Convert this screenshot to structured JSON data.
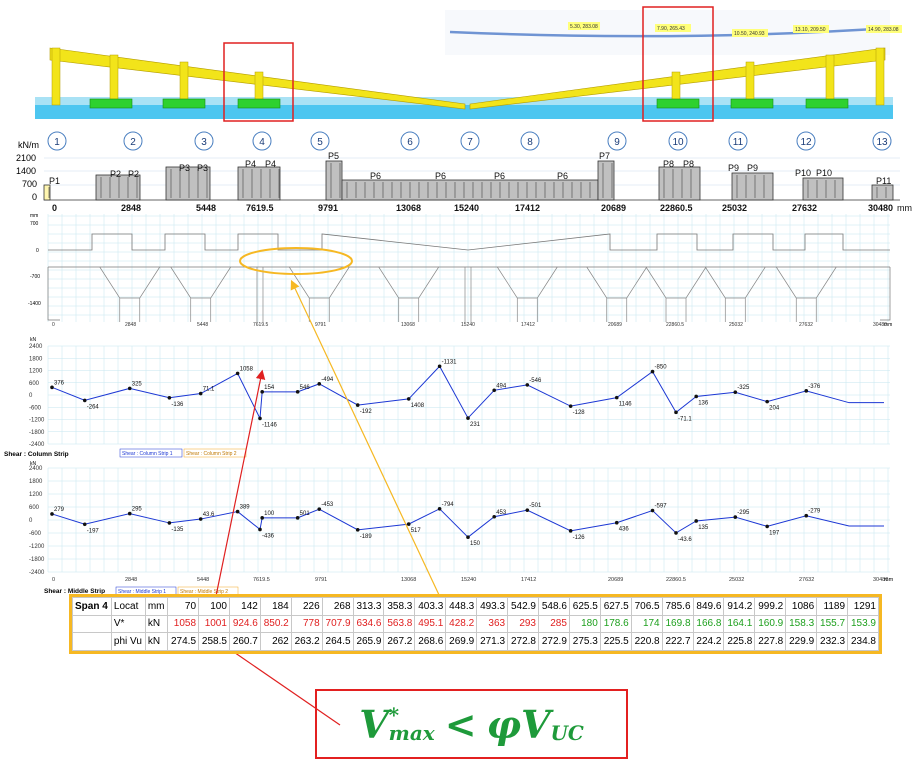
{
  "colors": {
    "slab": "#f2e41a",
    "beam": "#f2e41a",
    "column_top": "#2ed12e",
    "base": "#4dc6f0",
    "highlight": "#e02020",
    "callout": "#f6b823",
    "curve": "#1c37d4",
    "formula": "#1e9a3a"
  },
  "gridlines": [
    "1",
    "2",
    "3",
    "4",
    "5",
    "6",
    "7",
    "8",
    "9",
    "10",
    "11",
    "12",
    "13"
  ],
  "cable_labels": [
    "5.30, 283.08",
    "7.90, 265.43",
    "10.50, 240.93",
    "13.10, 209.50",
    "14.90, 283.08"
  ],
  "load_panel": {
    "unit": "kN/m",
    "y_ticks": [
      "2100",
      "1400",
      "700",
      "0"
    ],
    "x_labels": [
      "0",
      "2848",
      "5448",
      "7619.5",
      "9791",
      "13068",
      "15240",
      "17412",
      "20689",
      "22860.5",
      "25032",
      "27632",
      "30480"
    ],
    "x_unit": "mm",
    "patches": [
      "P1",
      "P2",
      "P2",
      "P3",
      "P3",
      "P4",
      "P4",
      "P5",
      "P6",
      "P6",
      "P6",
      "P6",
      "P7",
      "P8",
      "P8",
      "P9",
      "P9",
      "P10",
      "P10",
      "P11"
    ]
  },
  "section_panel": {
    "y_unit": "mm",
    "y_ticks": [
      "700",
      "0",
      "-700",
      "-1400"
    ],
    "x_labels": [
      "0",
      "2848",
      "5448",
      "7619.5",
      "9791",
      "13068",
      "15240",
      "17412",
      "20689",
      "22860.5",
      "25032",
      "27632",
      "30480"
    ],
    "x_unit": "mm"
  },
  "column_chart": {
    "unit": "kN",
    "y_ticks": [
      "2400",
      "1800",
      "1200",
      "600",
      "0",
      "-600",
      "-1200",
      "-1800",
      "-2400"
    ],
    "title": "Shear : Column Strip",
    "legend": [
      "Shear : Column Strip 1",
      "Shear : Column Strip 2"
    ],
    "labels": [
      "376",
      "-264",
      "325",
      "-136",
      "71.1",
      "1058",
      "-1146",
      "154",
      "546",
      "-494",
      "-192",
      "1408",
      "-1131",
      "231",
      "494",
      "-546",
      "-128",
      "1146",
      "-850",
      "-71.1",
      "136",
      "-325",
      "204",
      "-376"
    ]
  },
  "middle_chart": {
    "unit": "kN",
    "y_ticks": [
      "2400",
      "1800",
      "1200",
      "600",
      "0",
      "-600",
      "-1200",
      "-1800",
      "-2400"
    ],
    "title": "Shear : Middle Strip",
    "legend": [
      "Shear : Middle Strip 1",
      "Shear : Middle Strip 2"
    ],
    "labels": [
      "279",
      "-197",
      "295",
      "-135",
      "43.6",
      "389",
      "-436",
      "100",
      "501",
      "-453",
      "-189",
      "517",
      "-794",
      "150",
      "453",
      "-501",
      "-126",
      "436",
      "-597",
      "-43.6",
      "135",
      "-295",
      "197",
      "-279"
    ],
    "x_labels": [
      "0",
      "2848",
      "5448",
      "7619.5",
      "9791",
      "13068",
      "15240",
      "17412",
      "20689",
      "22860.5",
      "25032",
      "27632",
      "30480"
    ],
    "x_unit": "mm"
  },
  "chart_data": [
    {
      "type": "line",
      "title": "Shear : Column Strip",
      "ylabel": "kN",
      "ylim": [
        -2400,
        2400
      ],
      "x": [
        0,
        1200,
        2848,
        4300,
        5448,
        6800,
        7619.5,
        7700,
        9000,
        9791,
        11200,
        13068,
        14200,
        15240,
        16200,
        17412,
        19000,
        20689,
        22000,
        22860.5,
        23600,
        25032,
        26200,
        27632,
        29200,
        30480
      ],
      "values": [
        376,
        -264,
        325,
        -136,
        71.1,
        1058,
        -1146,
        154,
        154,
        546,
        -494,
        -192,
        1408,
        -1131,
        231,
        494,
        -546,
        -128,
        1146,
        -850,
        -71.1,
        136,
        -325,
        204,
        -376,
        -376
      ]
    },
    {
      "type": "line",
      "title": "Shear : Middle Strip",
      "ylabel": "kN",
      "ylim": [
        -2400,
        2400
      ],
      "x": [
        0,
        1200,
        2848,
        4300,
        5448,
        6800,
        7619.5,
        7700,
        9000,
        9791,
        11200,
        13068,
        14200,
        15240,
        16200,
        17412,
        19000,
        20689,
        22000,
        22860.5,
        23600,
        25032,
        26200,
        27632,
        29200,
        30480
      ],
      "values": [
        279,
        -197,
        295,
        -135,
        43.6,
        389,
        -436,
        100,
        100,
        501,
        -453,
        -189,
        517,
        -794,
        150,
        453,
        -501,
        -126,
        436,
        -597,
        -43.6,
        135,
        -295,
        197,
        -279,
        -279
      ]
    }
  ],
  "table": {
    "span_label": "Span 4",
    "rows": [
      {
        "name": "Locat",
        "unit": "mm",
        "cells": [
          "70",
          "100",
          "142",
          "184",
          "226",
          "268",
          "313.3",
          "358.3",
          "403.3",
          "448.3",
          "493.3",
          "542.9",
          "548.6",
          "625.5",
          "627.5",
          "706.5",
          "785.6",
          "849.6",
          "914.2",
          "999.2",
          "1086",
          "1189",
          "1291"
        ]
      },
      {
        "name": "V*",
        "unit": "kN",
        "cells": [
          "1058",
          "1001",
          "924.6",
          "850.2",
          "778",
          "707.9",
          "634.6",
          "563.8",
          "495.1",
          "428.2",
          "363",
          "293",
          "285",
          "180",
          "178.6",
          "174",
          "169.8",
          "166.8",
          "164.1",
          "160.9",
          "158.3",
          "155.7",
          "153.9"
        ]
      },
      {
        "name": "phi Vu",
        "unit": "kN",
        "cells": [
          "274.5",
          "258.5",
          "260.7",
          "262",
          "263.2",
          "264.5",
          "265.9",
          "267.2",
          "268.6",
          "269.9",
          "271.3",
          "272.8",
          "272.9",
          "275.3",
          "225.5",
          "220.8",
          "222.7",
          "224.2",
          "225.8",
          "227.8",
          "229.9",
          "232.3",
          "234.8"
        ]
      }
    ],
    "v_red_count": 13
  },
  "formula": {
    "base": "V",
    "sup": "*",
    "sub": "max",
    "rel": "<",
    "phi": "φ",
    "V2": "V",
    "sub2": "UC"
  }
}
